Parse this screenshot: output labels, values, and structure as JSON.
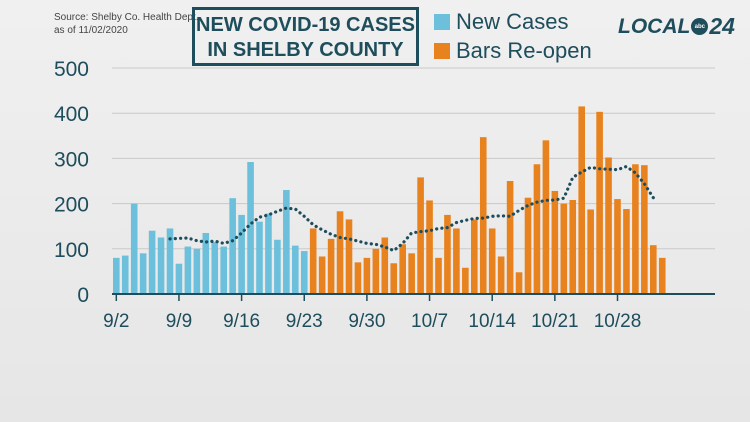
{
  "source_line1": "Source:  Shelby Co. Health Dept.",
  "source_line2": "as of 11/02/2020",
  "title_line1": "NEW COVID-19 CASES",
  "title_line2": "IN SHELBY COUNTY",
  "logo": {
    "text": "LOCAL",
    "badge": "abc",
    "number": "24"
  },
  "colors": {
    "new_cases": "#6cc0dc",
    "bars_reopen": "#e8821e",
    "average": "#1e4d5c",
    "axis": "#1e4d5c"
  },
  "chart_data": {
    "type": "bar",
    "title": "NEW COVID-19 CASES IN SHELBY COUNTY",
    "ylim": [
      0,
      500
    ],
    "yticks": [
      0,
      100,
      200,
      300,
      400,
      500
    ],
    "grid": true,
    "legend_placement": "top",
    "x_tick_labels": [
      "9/2",
      "9/9",
      "9/16",
      "9/23",
      "9/30",
      "10/7",
      "10/14",
      "10/21",
      "10/28"
    ],
    "x_tick_indices": [
      0,
      7,
      14,
      21,
      28,
      35,
      42,
      49,
      56
    ],
    "series": [
      {
        "name": "New Cases",
        "start_index": 0,
        "values": [
          80,
          85,
          200,
          90,
          140,
          125,
          145,
          67,
          105,
          100,
          135,
          115,
          105,
          212,
          175,
          292,
          160,
          178,
          120,
          230,
          107,
          95
        ]
      },
      {
        "name": "Bars Re-open",
        "start_index": 22,
        "values": [
          145,
          83,
          122,
          183,
          165,
          70,
          80,
          100,
          125,
          68,
          110,
          90,
          258,
          207,
          80,
          175,
          145,
          58,
          165,
          347,
          145,
          83,
          250,
          48,
          213,
          287,
          340,
          228,
          200,
          208,
          415,
          187,
          403,
          302,
          210,
          188,
          287,
          285,
          108,
          80
        ]
      }
    ],
    "moving_average": {
      "start_index": 6,
      "values": [
        122,
        123,
        124,
        118,
        115,
        117,
        112,
        118,
        135,
        155,
        170,
        175,
        183,
        190,
        188,
        172,
        153,
        142,
        132,
        125,
        122,
        117,
        112,
        110,
        104,
        96,
        112,
        135,
        138,
        140,
        145,
        147,
        158,
        163,
        167,
        168,
        172,
        173,
        172,
        185,
        196,
        203,
        207,
        208,
        212,
        258,
        270,
        280,
        277,
        276,
        275,
        282,
        268,
        244,
        213
      ]
    }
  }
}
